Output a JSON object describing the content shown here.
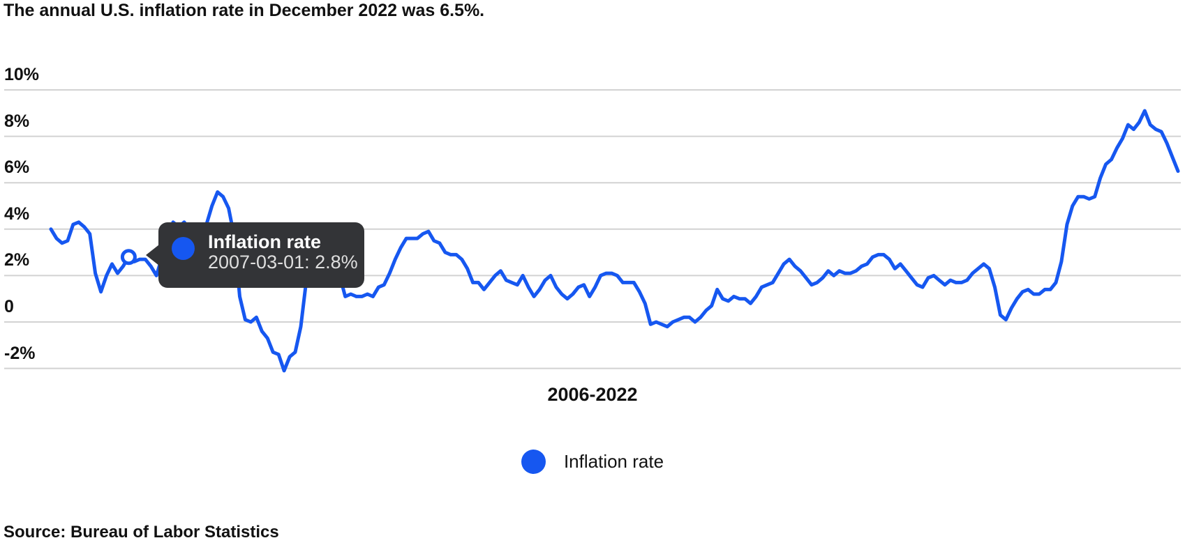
{
  "page": {
    "title": "The annual U.S. inflation rate in December 2022 was 6.5%.",
    "source": "Source: Bureau of Labor Statistics"
  },
  "colors": {
    "series_blue": "#1657f0",
    "gridline_gray": "#d2d2d2",
    "tooltip_bg": "#333437"
  },
  "tooltip": {
    "series_label": "Inflation rate",
    "value_text": "2007-03-01: 2.8%"
  },
  "legend": {
    "label": "Inflation rate",
    "swatch_icon": "circle-swatch-icon"
  },
  "chart_data": {
    "type": "line",
    "title": "The annual U.S. inflation rate in December 2022 was 6.5%.",
    "xlabel": "2006-2022",
    "ylabel": "",
    "x_start": "2006-01-01",
    "x_end": "2022-12-01",
    "x_frequency": "monthly",
    "grid": true,
    "legend_position": "bottom",
    "ylim": [
      -3,
      11
    ],
    "y_ticks": [
      {
        "label": "10%",
        "value": 10
      },
      {
        "label": "8%",
        "value": 8
      },
      {
        "label": "6%",
        "value": 6
      },
      {
        "label": "4%",
        "value": 4
      },
      {
        "label": "2%",
        "value": 2
      },
      {
        "label": "0",
        "value": 0
      },
      {
        "label": "-2%",
        "value": -2
      }
    ],
    "series": [
      {
        "name": "Inflation rate",
        "color": "#1657f0",
        "values": [
          4.0,
          3.6,
          3.4,
          3.5,
          4.2,
          4.3,
          4.1,
          3.8,
          2.1,
          1.3,
          2.0,
          2.5,
          2.1,
          2.4,
          2.8,
          2.6,
          2.7,
          2.7,
          2.4,
          2.0,
          2.8,
          3.5,
          4.3,
          4.1,
          4.3,
          4.0,
          4.0,
          3.9,
          4.2,
          5.0,
          5.6,
          5.4,
          4.9,
          3.7,
          1.1,
          0.1,
          0.0,
          0.2,
          -0.4,
          -0.7,
          -1.3,
          -1.4,
          -2.1,
          -1.5,
          -1.3,
          -0.2,
          1.8,
          2.7,
          2.6,
          2.1,
          2.3,
          2.2,
          2.0,
          1.1,
          1.2,
          1.1,
          1.1,
          1.2,
          1.1,
          1.5,
          1.6,
          2.1,
          2.7,
          3.2,
          3.6,
          3.6,
          3.6,
          3.8,
          3.9,
          3.5,
          3.4,
          3.0,
          2.9,
          2.9,
          2.7,
          2.3,
          1.7,
          1.7,
          1.4,
          1.7,
          2.0,
          2.2,
          1.8,
          1.7,
          1.6,
          2.0,
          1.5,
          1.1,
          1.4,
          1.8,
          2.0,
          1.5,
          1.2,
          1.0,
          1.2,
          1.5,
          1.6,
          1.1,
          1.5,
          2.0,
          2.1,
          2.1,
          2.0,
          1.7,
          1.7,
          1.7,
          1.3,
          0.8,
          -0.1,
          0.0,
          -0.1,
          -0.2,
          0.0,
          0.1,
          0.2,
          0.2,
          0.0,
          0.2,
          0.5,
          0.7,
          1.4,
          1.0,
          0.9,
          1.1,
          1.0,
          1.0,
          0.8,
          1.1,
          1.5,
          1.6,
          1.7,
          2.1,
          2.5,
          2.7,
          2.4,
          2.2,
          1.9,
          1.6,
          1.7,
          1.9,
          2.2,
          2.0,
          2.2,
          2.1,
          2.1,
          2.2,
          2.4,
          2.5,
          2.8,
          2.9,
          2.9,
          2.7,
          2.3,
          2.5,
          2.2,
          1.9,
          1.6,
          1.5,
          1.9,
          2.0,
          1.8,
          1.6,
          1.8,
          1.7,
          1.7,
          1.8,
          2.1,
          2.3,
          2.5,
          2.3,
          1.5,
          0.3,
          0.1,
          0.6,
          1.0,
          1.3,
          1.4,
          1.2,
          1.2,
          1.4,
          1.4,
          1.7,
          2.6,
          4.2,
          5.0,
          5.4,
          5.4,
          5.3,
          5.4,
          6.2,
          6.8,
          7.0,
          7.5,
          7.9,
          8.5,
          8.3,
          8.6,
          9.1,
          8.5,
          8.3,
          8.2,
          7.7,
          7.1,
          6.5
        ]
      }
    ],
    "highlight": {
      "index": 14,
      "date": "2007-03-01",
      "value": 2.8,
      "label": "Inflation rate"
    }
  }
}
